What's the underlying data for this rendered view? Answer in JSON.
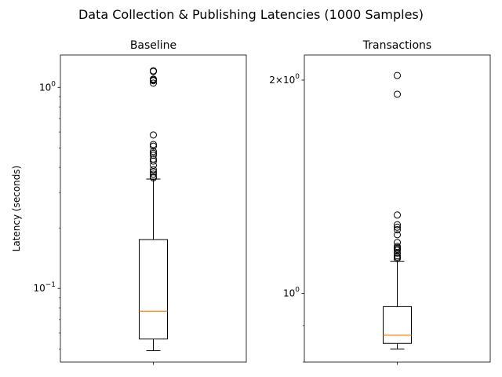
{
  "figure": {
    "suptitle": "Data Collection & Publishing Latencies (1000 Samples)"
  },
  "chart_data": [
    {
      "type": "boxplot",
      "title": "Baseline",
      "ylabel": "Latency (seconds)",
      "yscale": "log",
      "ylim": [
        0.043,
        1.45
      ],
      "yticks": [
        {
          "value": 1.0,
          "label": "10^0"
        },
        {
          "value": 0.1,
          "label": "10^-1"
        }
      ],
      "box": {
        "whisker_low": 0.049,
        "q1": 0.056,
        "median": 0.077,
        "q3": 0.175,
        "whisker_high": 0.35
      },
      "outliers": [
        1.21,
        1.2,
        1.1,
        1.09,
        1.08,
        1.05,
        0.58,
        0.52,
        0.51,
        0.48,
        0.47,
        0.46,
        0.44,
        0.43,
        0.41,
        0.39,
        0.38,
        0.37,
        0.36,
        0.355
      ]
    },
    {
      "type": "boxplot",
      "title": "Transactions",
      "ylabel": "",
      "yscale": "log",
      "ylim": [
        0.8,
        2.17
      ],
      "yticks": [
        {
          "value": 2.0,
          "label": "2×10^0"
        },
        {
          "value": 1.0,
          "label": "10^0"
        }
      ],
      "box": {
        "whisker_low": 0.835,
        "q1": 0.85,
        "median": 0.873,
        "q3": 0.958,
        "whisker_high": 1.11
      },
      "outliers": [
        2.03,
        1.91,
        1.29,
        1.25,
        1.24,
        1.23,
        1.21,
        1.18,
        1.165,
        1.16,
        1.155,
        1.15,
        1.14,
        1.13,
        1.125,
        1.12
      ]
    }
  ],
  "colors": {
    "median": "#ff7f0e",
    "line": "#000000"
  }
}
